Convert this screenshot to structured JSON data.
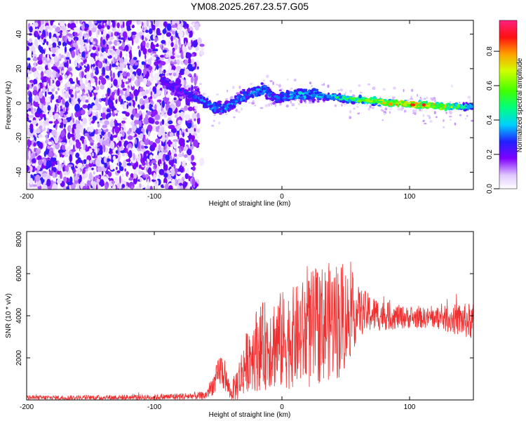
{
  "title": "YM08.2025.267.23.57.G05",
  "chart_data": [
    {
      "type": "heatmap",
      "name": "spectrogram",
      "xlabel": "Height of straight line (km)",
      "ylabel": "Frequency (Hz)",
      "xlim": [
        -200,
        150
      ],
      "ylim": [
        -50,
        48
      ],
      "xticks": [
        -200,
        -100,
        0,
        100
      ],
      "yticks": [
        -40,
        -20,
        0,
        20,
        40
      ],
      "colorbar": {
        "label": "Normalized spectral amplitude",
        "range": [
          0.0,
          0.98
        ],
        "ticks": [
          0.0,
          0.2,
          0.4,
          0.6,
          0.8
        ],
        "tick_labels": [
          "0.0",
          "0.2",
          "0.4",
          "0.6",
          "0.8"
        ]
      },
      "ridge": {
        "x": [
          -95,
          -85,
          -75,
          -65,
          -55,
          -45,
          -35,
          -25,
          -15,
          -5,
          5,
          15,
          25,
          35,
          45,
          55,
          65,
          75,
          85,
          95,
          105,
          115,
          125,
          135,
          150
        ],
        "freq": [
          14,
          9,
          6,
          3,
          -2,
          -3,
          2,
          6,
          8,
          3,
          4,
          5,
          5,
          4,
          3,
          2,
          2,
          1,
          0,
          0,
          -1,
          -1,
          -2,
          -2,
          -2
        ],
        "amplitude": [
          0.35,
          0.3,
          0.3,
          0.35,
          0.4,
          0.4,
          0.4,
          0.4,
          0.45,
          0.35,
          0.4,
          0.45,
          0.45,
          0.5,
          0.55,
          0.65,
          0.75,
          0.8,
          0.9,
          0.95,
          0.9,
          0.9,
          0.85,
          0.7,
          0.4
        ]
      },
      "noise_region_x": [
        -200,
        -70
      ]
    },
    {
      "type": "line",
      "name": "snr",
      "xlabel": "Height of straight line (km)",
      "ylabel": "SNR (10 * v/v)",
      "xlim": [
        -200,
        150
      ],
      "ylim": [
        0,
        8000
      ],
      "xticks": [
        -200,
        -100,
        0,
        100
      ],
      "yticks": [
        2000,
        4000,
        6000,
        8000
      ],
      "color": "#f03030",
      "envelope": {
        "x": [
          -200,
          -150,
          -100,
          -60,
          -52,
          -48,
          -45,
          -40,
          -35,
          -30,
          -25,
          -20,
          -10,
          0,
          10,
          20,
          25,
          30,
          40,
          45,
          50,
          60,
          70,
          80,
          100,
          120,
          140,
          150
        ],
        "mean": [
          100,
          110,
          130,
          200,
          900,
          1500,
          1100,
          300,
          800,
          1500,
          2200,
          2400,
          2700,
          2800,
          3000,
          3200,
          3300,
          3600,
          3800,
          3800,
          3900,
          4200,
          4100,
          4000,
          3900,
          3900,
          3800,
          3700
        ],
        "amplitude": [
          120,
          120,
          140,
          200,
          600,
          900,
          700,
          350,
          900,
          1300,
          1700,
          2000,
          2200,
          2400,
          2400,
          2700,
          3000,
          2800,
          2800,
          2900,
          2500,
          1200,
          900,
          700,
          500,
          500,
          800,
          900
        ]
      }
    }
  ]
}
